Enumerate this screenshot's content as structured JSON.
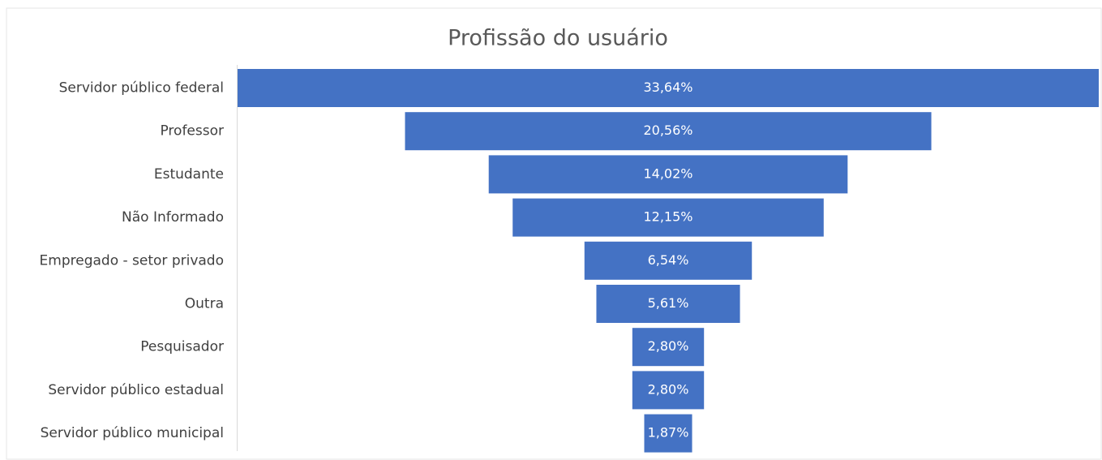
{
  "chart_data": {
    "type": "funnel",
    "title": "Profissão do usuário",
    "categories": [
      "Servidor público federal",
      "Professor",
      "Estudante",
      "Não Informado",
      "Empregado - setor privado",
      "Outra",
      "Pesquisador",
      "Servidor público estadual",
      "Servidor público municipal"
    ],
    "values": [
      33.64,
      20.56,
      14.02,
      12.15,
      6.54,
      5.61,
      2.8,
      2.8,
      1.87
    ],
    "value_labels": [
      "33,64%",
      "20,56%",
      "14,02%",
      "12,15%",
      "6,54%",
      "5,61%",
      "2,80%",
      "2,80%",
      "1,87%"
    ],
    "color": "#4472c4"
  }
}
